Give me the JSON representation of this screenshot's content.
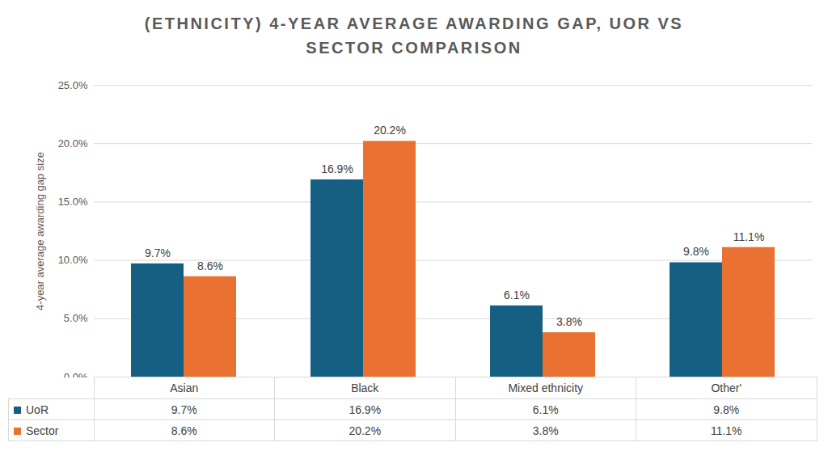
{
  "chart_data": {
    "type": "bar",
    "title": "(ETHNICITY) 4-YEAR AVERAGE AWARDING GAP, UOR VS SECTOR COMPARISON",
    "y_label": "4-year average awarding gap size",
    "categories": [
      "Asian",
      "Black",
      "Mixed ethnicity",
      "Other'"
    ],
    "series": [
      {
        "name": "UoR",
        "color": "#156082",
        "values": [
          9.7,
          16.9,
          6.1,
          9.8
        ],
        "value_labels": [
          "9.7%",
          "16.9%",
          "6.1%",
          "9.8%"
        ]
      },
      {
        "name": "Sector",
        "color": "#e97132",
        "values": [
          8.6,
          20.2,
          3.8,
          11.1
        ],
        "value_labels": [
          "8.6%",
          "20.2%",
          "3.8%",
          "11.1%"
        ]
      }
    ],
    "ylim": [
      0,
      25
    ],
    "yticks": [
      {
        "value": 0,
        "label": "0.0%"
      },
      {
        "value": 5,
        "label": "5.0%"
      },
      {
        "value": 10,
        "label": "10.0%"
      },
      {
        "value": 15,
        "label": "15.0%"
      },
      {
        "value": 20,
        "label": "20.0%"
      },
      {
        "value": 25,
        "label": "25.0%"
      }
    ],
    "grid": true,
    "data_labels": true
  }
}
